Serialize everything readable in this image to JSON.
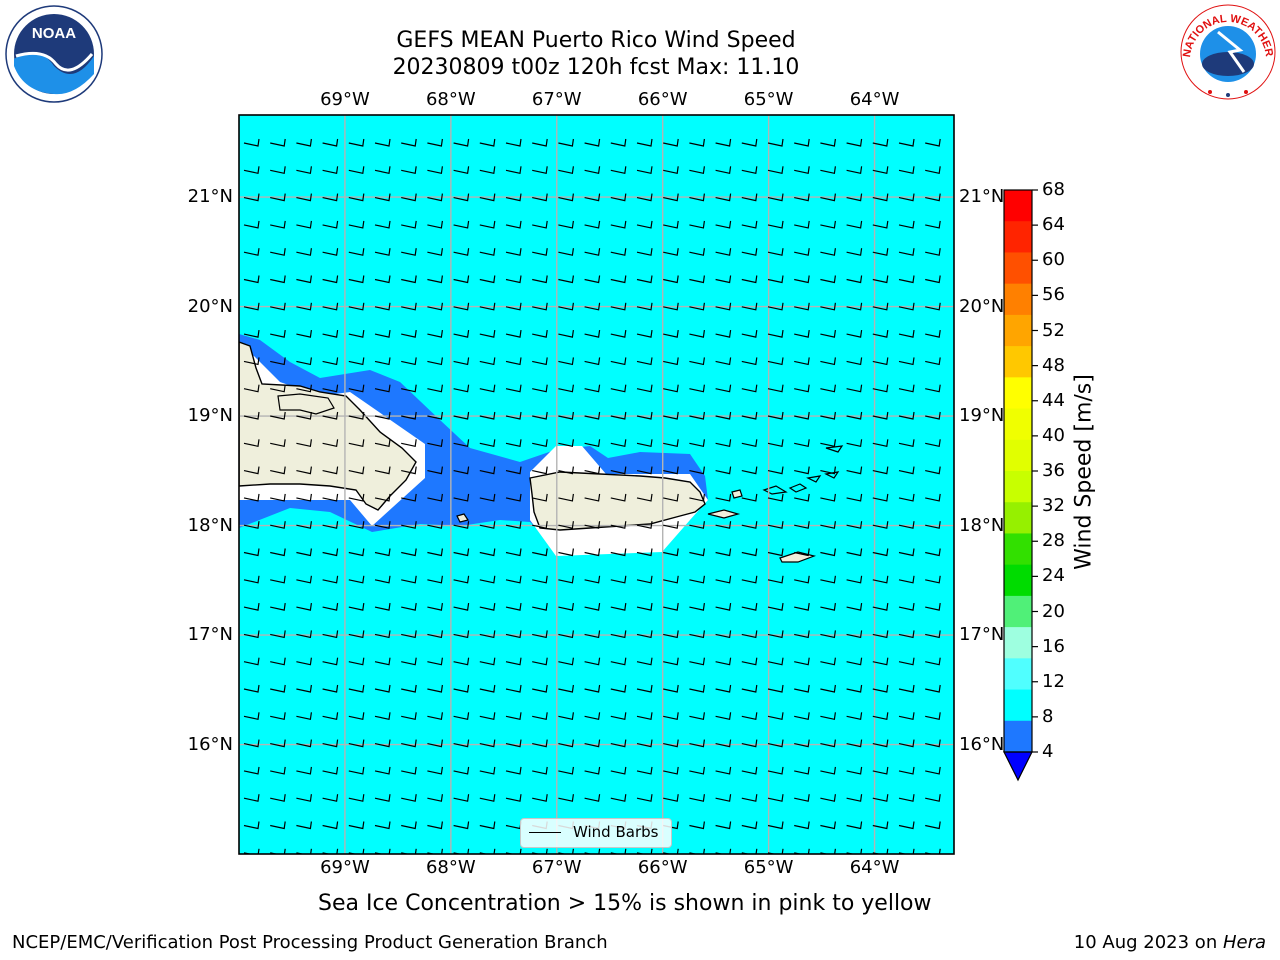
{
  "header": {
    "title_line1": "GEFS MEAN Puerto Rico Wind Speed",
    "title_line2": "20230809 t00z 120h fcst   Max: 11.10"
  },
  "logos": {
    "left": {
      "name": "noaa-logo",
      "text": "NOAA"
    },
    "right": {
      "name": "nws-logo",
      "text": "NATIONAL WEATHER SERVICE"
    }
  },
  "map": {
    "lon_labels": [
      "69°W",
      "68°W",
      "67°W",
      "66°W",
      "65°W",
      "64°W"
    ],
    "lon_values": [
      -69,
      -68,
      -67,
      -66,
      -65,
      -64
    ],
    "lat_labels": [
      "21°N",
      "20°N",
      "19°N",
      "18°N",
      "17°N",
      "16°N"
    ],
    "lat_values": [
      21,
      20,
      19,
      18,
      17,
      16
    ],
    "lon_range": [
      -70.0,
      -63.25
    ],
    "lat_range": [
      15.0,
      21.75
    ],
    "background_color": "#00ffff",
    "low_wind_color": "#1e78ff",
    "land_color": "#efefdc",
    "legend_label": "Wind Barbs"
  },
  "colorbar": {
    "label": "Wind Speed [m/s]",
    "ticks": [
      "68",
      "64",
      "60",
      "56",
      "52",
      "48",
      "44",
      "40",
      "36",
      "32",
      "28",
      "24",
      "20",
      "16",
      "12",
      "8",
      "4"
    ],
    "colors": [
      "#ff0000",
      "#ff2400",
      "#ff5000",
      "#ff8000",
      "#ffa500",
      "#ffc800",
      "#ffff00",
      "#f0ff00",
      "#e1ff00",
      "#c8ff00",
      "#96f000",
      "#32e000",
      "#00dc00",
      "#50f078",
      "#9effe0",
      "#50ffff",
      "#00ffff",
      "#1e78ff"
    ],
    "extend_color": "#0000ff"
  },
  "notes": {
    "sea_ice": "Sea Ice Concentration > 15% is shown in pink to yellow",
    "footer_left": "NCEP/EMC/Verification Post Processing Product Generation Branch",
    "footer_right_prefix": "10 Aug 2023 on ",
    "footer_right_host": "Hera"
  }
}
